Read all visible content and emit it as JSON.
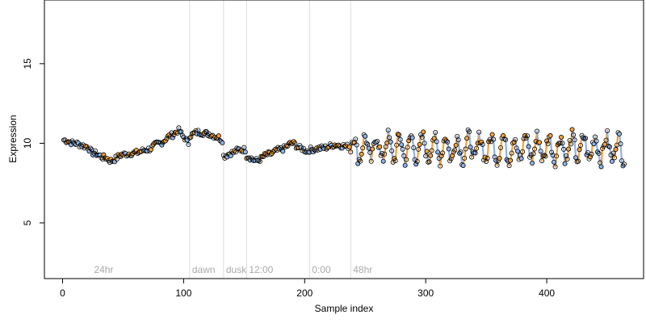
{
  "chart_data": {
    "type": "scatter",
    "title": "",
    "xlabel": "Sample index",
    "ylabel": "Expression",
    "xlim": [
      -15,
      480
    ],
    "ylim": [
      1.5,
      19
    ],
    "x_ticks": [
      0,
      100,
      200,
      300,
      400
    ],
    "y_ticks": [
      5,
      10,
      15
    ],
    "grid": false,
    "colors": {
      "orange": "#f4a23c",
      "blue": "#8fb3e8",
      "vline": "#dddddd",
      "annot": "#aaaaaa"
    },
    "annotations": [
      {
        "x": 24,
        "label": "24hr"
      },
      {
        "x": 105,
        "label": "dawn"
      },
      {
        "x": 133,
        "label": "dusk"
      },
      {
        "x": 152,
        "label": "12:00"
      },
      {
        "x": 204,
        "label": "0:00"
      },
      {
        "x": 238,
        "label": "48hr"
      }
    ],
    "segments": [
      {
        "x0": 1,
        "x1": 104,
        "kind": "smooth",
        "keys": [
          [
            1,
            10.2
          ],
          [
            10,
            10.0
          ],
          [
            20,
            9.8
          ],
          [
            25,
            9.4
          ],
          [
            35,
            9.1
          ],
          [
            40,
            8.9
          ],
          [
            50,
            9.3
          ],
          [
            60,
            9.4
          ],
          [
            70,
            9.6
          ],
          [
            80,
            10.0
          ],
          [
            90,
            10.5
          ],
          [
            96,
            10.8
          ],
          [
            100,
            10.4
          ],
          [
            104,
            10.0
          ]
        ]
      },
      {
        "x0": 105,
        "x1": 132,
        "kind": "smooth",
        "keys": [
          [
            105,
            10.5
          ],
          [
            112,
            10.7
          ],
          [
            120,
            10.6
          ],
          [
            128,
            10.4
          ],
          [
            132,
            10.2
          ]
        ]
      },
      {
        "x0": 133,
        "x1": 151,
        "kind": "smooth",
        "keys": [
          [
            133,
            9.2
          ],
          [
            140,
            9.4
          ],
          [
            146,
            9.6
          ],
          [
            151,
            9.6
          ]
        ]
      },
      {
        "x0": 152,
        "x1": 203,
        "kind": "smooth",
        "keys": [
          [
            152,
            9.2
          ],
          [
            160,
            8.9
          ],
          [
            170,
            9.3
          ],
          [
            180,
            9.6
          ],
          [
            190,
            10.0
          ],
          [
            196,
            9.7
          ],
          [
            203,
            9.5
          ]
        ]
      },
      {
        "x0": 204,
        "x1": 237,
        "kind": "smooth",
        "keys": [
          [
            204,
            9.6
          ],
          [
            215,
            9.7
          ],
          [
            225,
            9.9
          ],
          [
            237,
            9.8
          ]
        ]
      },
      {
        "x0": 238,
        "x1": 464,
        "kind": "osc",
        "base": 9.7,
        "amp": 0.75,
        "period": 9.5
      }
    ]
  }
}
